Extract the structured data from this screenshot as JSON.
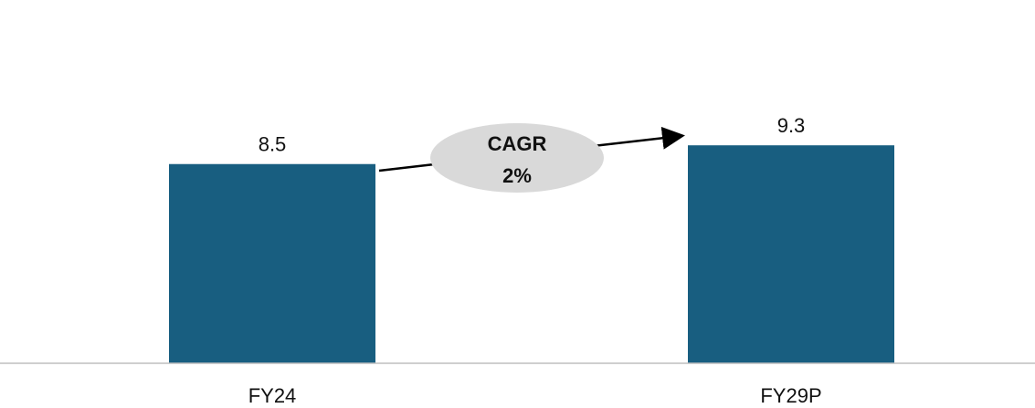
{
  "chart_data": {
    "type": "bar",
    "categories": [
      "FY24",
      "FY29P"
    ],
    "values": [
      8.5,
      9.3
    ],
    "value_labels": [
      "8.5",
      "9.3"
    ],
    "ylim": [
      0,
      15.5
    ],
    "grid": false,
    "annotation": {
      "line1": "CAGR",
      "line2": "2%"
    }
  },
  "colors": {
    "bar": "#185e80",
    "ellipse": "#d9d9d9",
    "axis": "#bfbfbf"
  }
}
